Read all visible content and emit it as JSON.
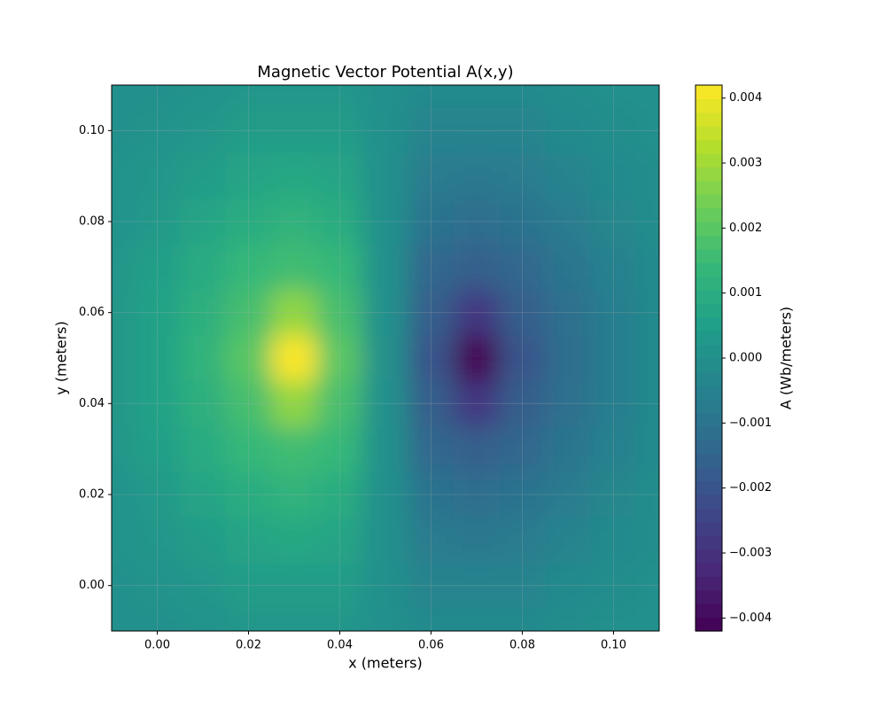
{
  "chart_data": {
    "type": "contourf",
    "title": "Magnetic Vector Potential A(x,y)",
    "x_label": "x (meters)",
    "y_label": "y (meters)",
    "colorbar_label": "A (Wb/meters)",
    "x": [
      -0.01,
      0,
      0.01,
      0.02,
      0.03,
      0.04,
      0.05,
      0.06,
      0.07,
      0.08,
      0.09,
      0.1,
      0.11
    ],
    "y": [
      -0.01,
      0,
      0.01,
      0.02,
      0.03,
      0.04,
      0.05,
      0.06,
      0.07,
      0.08,
      0.09,
      0.1,
      0.11
    ],
    "z": [
      [
        0,
        0,
        0.0001,
        0.0002,
        0.0002,
        0.0002,
        0,
        -0.0002,
        -0.0002,
        -0.0002,
        -0.0001,
        0,
        0
      ],
      [
        0,
        0.0001,
        0.0002,
        0.0004,
        0.0004,
        0.0004,
        0,
        -0.0004,
        -0.0004,
        -0.0004,
        -0.0002,
        -0.0001,
        0
      ],
      [
        0.0001,
        0.0002,
        0.0004,
        0.0007,
        0.0008,
        0.0007,
        0,
        -0.0007,
        -0.0008,
        -0.0007,
        -0.0004,
        -0.0002,
        -0.0001
      ],
      [
        0.0001,
        0.0003,
        0.0007,
        0.001,
        0.0012,
        0.001,
        0,
        -0.001,
        -0.0012,
        -0.001,
        -0.0007,
        -0.0003,
        -0.0001
      ],
      [
        0.0002,
        0.0005,
        0.0009,
        0.0014,
        0.0016,
        0.0014,
        0,
        -0.0014,
        -0.0016,
        -0.0014,
        -0.0009,
        -0.0005,
        -0.0002
      ],
      [
        0.0002,
        0.0006,
        0.0011,
        0.0017,
        0.0028,
        0.0017,
        0,
        -0.0017,
        -0.0028,
        -0.0017,
        -0.0011,
        -0.0006,
        -0.0002
      ],
      [
        0.0002,
        0.0006,
        0.0012,
        0.002,
        0.0042,
        0.002,
        0,
        -0.002,
        -0.0042,
        -0.002,
        -0.0012,
        -0.0006,
        -0.0002
      ],
      [
        0.0002,
        0.0006,
        0.0011,
        0.0017,
        0.0028,
        0.0017,
        0,
        -0.0017,
        -0.0028,
        -0.0017,
        -0.0011,
        -0.0006,
        -0.0002
      ],
      [
        0.0002,
        0.0005,
        0.0009,
        0.0014,
        0.0016,
        0.0014,
        0,
        -0.0014,
        -0.0016,
        -0.0014,
        -0.0009,
        -0.0005,
        -0.0002
      ],
      [
        0.0001,
        0.0003,
        0.0007,
        0.001,
        0.0012,
        0.001,
        0,
        -0.001,
        -0.0012,
        -0.001,
        -0.0007,
        -0.0003,
        -0.0001
      ],
      [
        0.0001,
        0.0002,
        0.0004,
        0.0007,
        0.0008,
        0.0007,
        0,
        -0.0007,
        -0.0008,
        -0.0007,
        -0.0004,
        -0.0002,
        -0.0001
      ],
      [
        0,
        0.0001,
        0.0002,
        0.0004,
        0.0004,
        0.0004,
        0,
        -0.0004,
        -0.0004,
        -0.0004,
        -0.0002,
        -0.0001,
        0
      ],
      [
        0,
        0,
        0.0001,
        0.0002,
        0.0002,
        0.0002,
        0,
        -0.0002,
        -0.0002,
        -0.0002,
        -0.0001,
        0,
        0
      ]
    ],
    "xlim": [
      -0.01,
      0.11
    ],
    "ylim": [
      -0.01,
      0.11
    ],
    "xticks": [
      {
        "value": 0,
        "label": "0.00"
      },
      0.02,
      0.04,
      0.06,
      0.08,
      {
        "value": 0.1,
        "label": "0.10"
      }
    ],
    "yticks": [
      {
        "value": 0,
        "label": "0.00"
      },
      0.02,
      0.04,
      0.06,
      0.08,
      {
        "value": 0.1,
        "label": "0.10"
      }
    ],
    "clim": [
      -0.0042,
      0.0042
    ],
    "cticks": [
      {
        "value": -0.004,
        "label": "−0.004"
      },
      {
        "value": -0.003,
        "label": "−0.003"
      },
      {
        "value": -0.002,
        "label": "−0.002"
      },
      {
        "value": -0.001,
        "label": "−0.001"
      },
      {
        "value": 0,
        "label": "0.000"
      },
      0.001,
      0.002,
      0.003,
      0.004
    ],
    "colormap": [
      "#440154",
      "#482878",
      "#3e4989",
      "#31688e",
      "#26828e",
      "#1f9e89",
      "#35b779",
      "#6ece58",
      "#b5de2b",
      "#fde725"
    ],
    "grid": true
  }
}
